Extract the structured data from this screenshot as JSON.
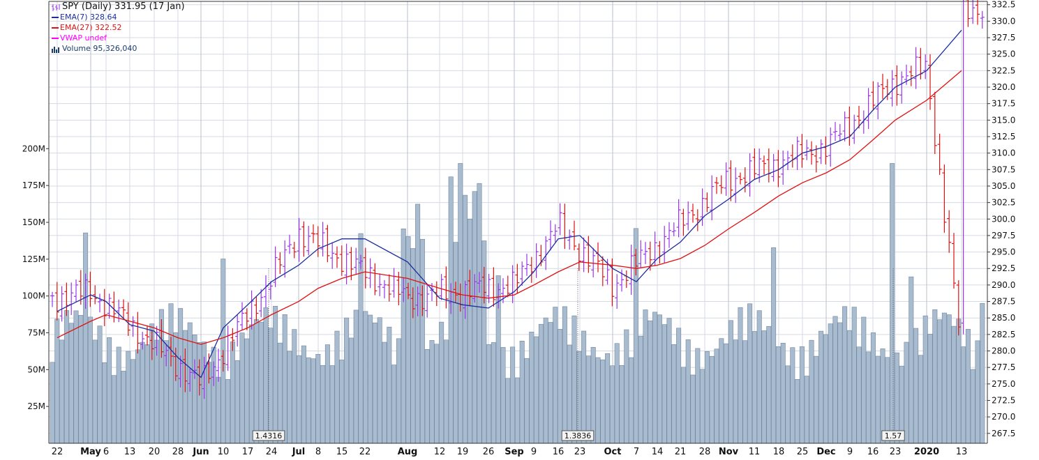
{
  "colors": {
    "up": "#9933ee",
    "down": "#e01010",
    "ema7": "#1a2d9e",
    "ema27": "#e01010",
    "vwap": "#ff00ff",
    "volume_fill": "#a9bccf",
    "volume_stroke": "#6f869e",
    "grid": "#d4dae4",
    "axis_text": "#111111"
  },
  "legend": {
    "main": "SPY (Daily) 331.95 (17 Jan)",
    "ema7": "EMA(7) 328.64",
    "ema27": "EMA(27) 322.52",
    "vwap": "VWAP undef",
    "volume": "Volume 95,326,040"
  },
  "chart_data": {
    "type": "bar",
    "title": "SPY (Daily) 331.95 (17 Jan)",
    "price_axis": {
      "ylim": [
        266.0,
        333.0
      ],
      "ticks": [
        "267.5",
        "270.0",
        "272.5",
        "275.0",
        "277.5",
        "280.0",
        "282.5",
        "285.0",
        "287.5",
        "290.0",
        "292.5",
        "295.0",
        "297.5",
        "300.0",
        "302.5",
        "305.0",
        "307.5",
        "310.0",
        "312.5",
        "315.0",
        "317.5",
        "320.0",
        "322.5",
        "325.0",
        "327.5",
        "330.0",
        "332.5"
      ]
    },
    "volume_axis": {
      "ylim": [
        0,
        300
      ],
      "unit": "M",
      "ticks": [
        "25M",
        "50M",
        "75M",
        "100M",
        "125M",
        "150M",
        "175M",
        "200M"
      ]
    },
    "x_labels": [
      {
        "label": "22",
        "bold": false
      },
      {
        "label": "May",
        "bold": true
      },
      {
        "label": "6",
        "bold": false
      },
      {
        "label": "13",
        "bold": false
      },
      {
        "label": "20",
        "bold": false
      },
      {
        "label": "28",
        "bold": false
      },
      {
        "label": "Jun",
        "bold": true
      },
      {
        "label": "10",
        "bold": false
      },
      {
        "label": "17",
        "bold": false
      },
      {
        "label": "24",
        "bold": false
      },
      {
        "label": "Jul",
        "bold": true
      },
      {
        "label": "8",
        "bold": false
      },
      {
        "label": "15",
        "bold": false
      },
      {
        "label": "22",
        "bold": false
      },
      {
        "label": "Aug",
        "bold": true
      },
      {
        "label": "12",
        "bold": false
      },
      {
        "label": "19",
        "bold": false
      },
      {
        "label": "26",
        "bold": false
      },
      {
        "label": "Sep",
        "bold": true
      },
      {
        "label": "9",
        "bold": false
      },
      {
        "label": "16",
        "bold": false
      },
      {
        "label": "23",
        "bold": false
      },
      {
        "label": "Oct",
        "bold": true
      },
      {
        "label": "7",
        "bold": false
      },
      {
        "label": "14",
        "bold": false
      },
      {
        "label": "21",
        "bold": false
      },
      {
        "label": "28",
        "bold": false
      },
      {
        "label": "Nov",
        "bold": true
      },
      {
        "label": "11",
        "bold": false
      },
      {
        "label": "18",
        "bold": false
      },
      {
        "label": "25",
        "bold": false
      },
      {
        "label": "Dec",
        "bold": true
      },
      {
        "label": "9",
        "bold": false
      },
      {
        "label": "16",
        "bold": false
      },
      {
        "label": "23",
        "bold": false
      },
      {
        "label": "2020",
        "bold": true
      },
      {
        "label": "13",
        "bold": false
      }
    ],
    "annotations": [
      {
        "label": "1.4316",
        "near": "24"
      },
      {
        "label": "1.3836",
        "near": "23"
      },
      {
        "label": "1.57",
        "near": "23"
      }
    ],
    "key_points": [
      {
        "x": "22",
        "close": 288.0
      },
      {
        "x": "May",
        "close": 289.0
      },
      {
        "x": "13",
        "close": 280.0
      },
      {
        "x": "Jun",
        "close": 275.0
      },
      {
        "x": "24",
        "close": 291.0
      },
      {
        "x": "Jul",
        "close": 298.0
      },
      {
        "x": "Aug",
        "close": 288.0
      },
      {
        "x": "Sep",
        "close": 290.0
      },
      {
        "x": "16",
        "close": 299.0
      },
      {
        "x": "Oct",
        "close": 290.0
      },
      {
        "x": "Nov",
        "close": 306.0
      },
      {
        "x": "Dec",
        "close": 311.0
      },
      {
        "x": "23",
        "close": 321.0
      },
      {
        "x": "2020",
        "close": 323.0
      },
      {
        "x": "13",
        "close": 331.95
      }
    ],
    "series": [
      {
        "name": "EMA(7)",
        "last": 328.64,
        "points": [
          {
            "x": "22",
            "y": 286.0
          },
          {
            "x": "May",
            "y": 288.5
          },
          {
            "x": "6",
            "y": 287.5
          },
          {
            "x": "13",
            "y": 284.0
          },
          {
            "x": "20",
            "y": 283.0
          },
          {
            "x": "28",
            "y": 279.0
          },
          {
            "x": "Jun",
            "y": 276.0
          },
          {
            "x": "10",
            "y": 283.5
          },
          {
            "x": "17",
            "y": 287.0
          },
          {
            "x": "24",
            "y": 290.5
          },
          {
            "x": "Jul",
            "y": 293.0
          },
          {
            "x": "8",
            "y": 295.5
          },
          {
            "x": "15",
            "y": 297.0
          },
          {
            "x": "22",
            "y": 297.0
          },
          {
            "x": "Aug",
            "y": 293.5
          },
          {
            "x": "12",
            "y": 288.0
          },
          {
            "x": "19",
            "y": 287.0
          },
          {
            "x": "26",
            "y": 286.5
          },
          {
            "x": "Sep",
            "y": 289.0
          },
          {
            "x": "9",
            "y": 292.0
          },
          {
            "x": "16",
            "y": 297.0
          },
          {
            "x": "23",
            "y": 297.5
          },
          {
            "x": "Oct",
            "y": 292.5
          },
          {
            "x": "7",
            "y": 290.5
          },
          {
            "x": "14",
            "y": 294.0
          },
          {
            "x": "21",
            "y": 296.5
          },
          {
            "x": "28",
            "y": 300.5
          },
          {
            "x": "Nov",
            "y": 303.0
          },
          {
            "x": "11",
            "y": 306.0
          },
          {
            "x": "18",
            "y": 307.5
          },
          {
            "x": "25",
            "y": 310.0
          },
          {
            "x": "Dec",
            "y": 311.0
          },
          {
            "x": "9",
            "y": 312.5
          },
          {
            "x": "16",
            "y": 316.5
          },
          {
            "x": "23",
            "y": 320.0
          },
          {
            "x": "2020",
            "y": 322.5
          },
          {
            "x": "13",
            "y": 328.64
          }
        ]
      },
      {
        "name": "EMA(27)",
        "last": 322.52,
        "points": [
          {
            "x": "22",
            "y": 282.0
          },
          {
            "x": "May",
            "y": 284.5
          },
          {
            "x": "6",
            "y": 285.5
          },
          {
            "x": "13",
            "y": 284.5
          },
          {
            "x": "20",
            "y": 283.5
          },
          {
            "x": "28",
            "y": 282.0
          },
          {
            "x": "Jun",
            "y": 281.0
          },
          {
            "x": "10",
            "y": 282.0
          },
          {
            "x": "17",
            "y": 283.5
          },
          {
            "x": "24",
            "y": 285.5
          },
          {
            "x": "Jul",
            "y": 287.5
          },
          {
            "x": "8",
            "y": 289.5
          },
          {
            "x": "15",
            "y": 291.0
          },
          {
            "x": "22",
            "y": 292.0
          },
          {
            "x": "Aug",
            "y": 291.0
          },
          {
            "x": "12",
            "y": 289.5
          },
          {
            "x": "19",
            "y": 288.5
          },
          {
            "x": "26",
            "y": 288.0
          },
          {
            "x": "Sep",
            "y": 288.5
          },
          {
            "x": "9",
            "y": 290.0
          },
          {
            "x": "16",
            "y": 292.0
          },
          {
            "x": "23",
            "y": 293.5
          },
          {
            "x": "Oct",
            "y": 293.0
          },
          {
            "x": "7",
            "y": 292.5
          },
          {
            "x": "14",
            "y": 293.0
          },
          {
            "x": "21",
            "y": 294.0
          },
          {
            "x": "28",
            "y": 296.0
          },
          {
            "x": "Nov",
            "y": 298.5
          },
          {
            "x": "11",
            "y": 301.0
          },
          {
            "x": "18",
            "y": 303.5
          },
          {
            "x": "25",
            "y": 305.5
          },
          {
            "x": "Dec",
            "y": 307.0
          },
          {
            "x": "9",
            "y": 309.0
          },
          {
            "x": "16",
            "y": 312.0
          },
          {
            "x": "23",
            "y": 315.0
          },
          {
            "x": "2020",
            "y": 318.0
          },
          {
            "x": "13",
            "y": 322.52
          }
        ]
      }
    ],
    "volume_last": 95326040,
    "grid": true,
    "legend_position": "top-left"
  }
}
